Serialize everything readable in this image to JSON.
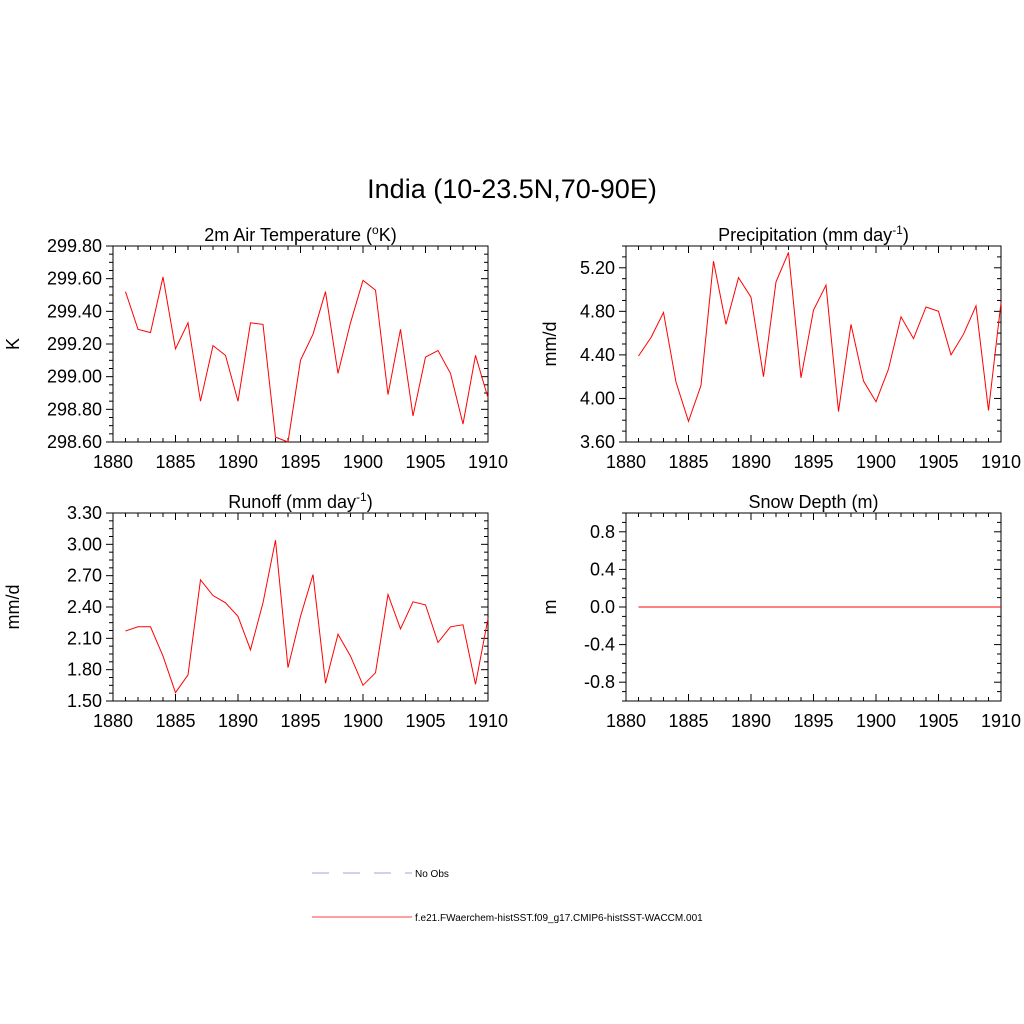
{
  "title": "India (10-23.5N,70-90E)",
  "legend": [
    {
      "label": "No Obs",
      "color": "#a0a0e0",
      "dash": true
    },
    {
      "label": "f.e21.FWaerchem-histSST.f09_g17.CMIP6-histSST-WACCM.001",
      "color": "#ff4040",
      "dash": false
    }
  ],
  "chart_data": [
    {
      "type": "line",
      "title": "2m Air Temperature (°K)",
      "title_parts": {
        "pre": "2m Air Temperature (",
        "sup": "o",
        "post": "K)"
      },
      "xlabel": "",
      "ylabel": "K",
      "xlim": [
        1880,
        1910
      ],
      "ylim": [
        298.6,
        299.8
      ],
      "x_ticks": [
        1880,
        1885,
        1890,
        1895,
        1900,
        1905,
        1910
      ],
      "y_ticks": [
        "298.60",
        "298.80",
        "299.00",
        "299.20",
        "299.40",
        "299.60",
        "299.80"
      ],
      "color": "#ff0000",
      "series": [
        {
          "x": [
            1881,
            1882,
            1883,
            1884,
            1885,
            1886,
            1887,
            1888,
            1889,
            1890,
            1891,
            1892,
            1893,
            1894,
            1895,
            1896,
            1897,
            1898,
            1899,
            1900,
            1901,
            1902,
            1903,
            1904,
            1905,
            1906,
            1907,
            1908,
            1909,
            1910
          ],
          "values": [
            299.52,
            299.29,
            299.27,
            299.61,
            299.17,
            299.33,
            298.85,
            299.19,
            299.13,
            298.85,
            299.33,
            299.32,
            298.63,
            298.6,
            299.1,
            299.26,
            299.52,
            299.02,
            299.33,
            299.59,
            299.53,
            298.89,
            299.29,
            298.76,
            299.12,
            299.16,
            299.02,
            298.71,
            299.13,
            298.87
          ]
        }
      ]
    },
    {
      "type": "line",
      "title": "Precipitation (mm day-1)",
      "title_parts": {
        "pre": "Precipitation (mm day",
        "sup": "-1",
        "post": ")"
      },
      "xlabel": "",
      "ylabel": "mm/d",
      "xlim": [
        1880,
        1910
      ],
      "ylim": [
        3.6,
        5.4
      ],
      "x_ticks": [
        1880,
        1885,
        1890,
        1895,
        1900,
        1905,
        1910
      ],
      "y_ticks": [
        "3.60",
        "4.00",
        "4.40",
        "4.80",
        "5.20"
      ],
      "color": "#ff0000",
      "series": [
        {
          "x": [
            1881,
            1882,
            1883,
            1884,
            1885,
            1886,
            1887,
            1888,
            1889,
            1890,
            1891,
            1892,
            1893,
            1894,
            1895,
            1896,
            1897,
            1898,
            1899,
            1900,
            1901,
            1902,
            1903,
            1904,
            1905,
            1906,
            1907,
            1908,
            1909,
            1910
          ],
          "values": [
            4.39,
            4.56,
            4.79,
            4.15,
            3.79,
            4.12,
            5.26,
            4.68,
            5.11,
            4.93,
            4.2,
            5.07,
            5.34,
            4.19,
            4.81,
            5.04,
            3.88,
            4.68,
            4.16,
            3.97,
            4.27,
            4.75,
            4.55,
            4.84,
            4.8,
            4.4,
            4.59,
            4.85,
            3.89,
            4.88
          ]
        }
      ]
    },
    {
      "type": "line",
      "title": "Runoff (mm day-1)",
      "title_parts": {
        "pre": "Runoff (mm day",
        "sup": "-1",
        "post": ")"
      },
      "xlabel": "",
      "ylabel": "mm/d",
      "xlim": [
        1880,
        1910
      ],
      "ylim": [
        1.5,
        3.3
      ],
      "x_ticks": [
        1880,
        1885,
        1890,
        1895,
        1900,
        1905,
        1910
      ],
      "y_ticks": [
        "1.50",
        "1.80",
        "2.10",
        "2.40",
        "2.70",
        "3.00",
        "3.30"
      ],
      "color": "#ff0000",
      "series": [
        {
          "x": [
            1881,
            1882,
            1883,
            1884,
            1885,
            1886,
            1887,
            1888,
            1889,
            1890,
            1891,
            1892,
            1893,
            1894,
            1895,
            1896,
            1897,
            1898,
            1899,
            1900,
            1901,
            1902,
            1903,
            1904,
            1905,
            1906,
            1907,
            1908,
            1909,
            1910
          ],
          "values": [
            2.17,
            2.21,
            2.21,
            1.93,
            1.58,
            1.75,
            2.66,
            2.51,
            2.44,
            2.31,
            1.99,
            2.44,
            3.04,
            1.82,
            2.31,
            2.71,
            1.67,
            2.14,
            1.93,
            1.65,
            1.77,
            2.52,
            2.19,
            2.45,
            2.42,
            2.06,
            2.21,
            2.23,
            1.66,
            2.29
          ]
        }
      ]
    },
    {
      "type": "line",
      "title": "Snow Depth (m)",
      "title_parts": {
        "pre": "Snow Depth (m)",
        "sup": "",
        "post": ""
      },
      "xlabel": "",
      "ylabel": "m",
      "xlim": [
        1880,
        1910
      ],
      "ylim": [
        -1.0,
        1.0
      ],
      "x_ticks": [
        1880,
        1885,
        1890,
        1895,
        1900,
        1905,
        1910
      ],
      "y_ticks": [
        "-0.8",
        "-0.4",
        "0.0",
        "0.4",
        "0.8"
      ],
      "color": "#ff0000",
      "series": [
        {
          "x": [
            1881,
            1882,
            1883,
            1884,
            1885,
            1886,
            1887,
            1888,
            1889,
            1890,
            1891,
            1892,
            1893,
            1894,
            1895,
            1896,
            1897,
            1898,
            1899,
            1900,
            1901,
            1902,
            1903,
            1904,
            1905,
            1906,
            1907,
            1908,
            1909,
            1910
          ],
          "values": [
            0,
            0,
            0,
            0,
            0,
            0,
            0,
            0,
            0,
            0,
            0,
            0,
            0,
            0,
            0,
            0,
            0,
            0,
            0,
            0,
            0,
            0,
            0,
            0,
            0,
            0,
            0,
            0,
            0,
            0
          ]
        }
      ]
    }
  ]
}
